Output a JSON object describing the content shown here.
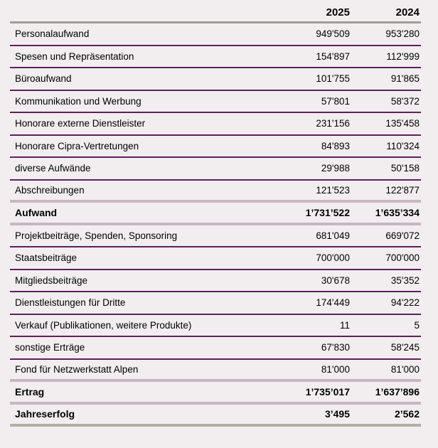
{
  "table": {
    "header": {
      "label": "",
      "year_col_1": "2025",
      "year_col_2": "2024"
    },
    "rows": [
      {
        "label": "Personalaufwand",
        "y2025": "949'509",
        "y2024": "953'280",
        "bold": false
      },
      {
        "label": "Spesen und Repräsentation",
        "y2025": "154'897",
        "y2024": "112'999",
        "bold": false
      },
      {
        "label": "Büroaufwand",
        "y2025": "101'755",
        "y2024": "91'865",
        "bold": false
      },
      {
        "label": "Kommunikation und Werbung",
        "y2025": "57'801",
        "y2024": "58'372",
        "bold": false
      },
      {
        "label": "Honorare externe Dienstleister",
        "y2025": "231'156",
        "y2024": "135'458",
        "bold": false
      },
      {
        "label": "Honorare Cipra-Vertretungen",
        "y2025": "84'893",
        "y2024": "110'324",
        "bold": false
      },
      {
        "label": "diverse Aufwände",
        "y2025": "29'988",
        "y2024": "50'158",
        "bold": false
      },
      {
        "label": "Abschreibungen",
        "y2025": "121'523",
        "y2024": "122'877",
        "bold": false
      },
      {
        "label": "Aufwand",
        "y2025": "1’731’522",
        "y2024": "1’635’334",
        "bold": true
      },
      {
        "label": "Projektbeiträge, Spenden, Sponsoring",
        "y2025": "681'049",
        "y2024": "669'072",
        "bold": false
      },
      {
        "label": "Staatsbeiträge",
        "y2025": "700'000",
        "y2024": "700'000",
        "bold": false
      },
      {
        "label": "Mitgliedsbeiträge",
        "y2025": "30'678",
        "y2024": "35'352",
        "bold": false
      },
      {
        "label": "Dienstleistungen für Dritte",
        "y2025": "174'449",
        "y2024": "94'222",
        "bold": false
      },
      {
        "label": "Verkauf (Publikationen, weitere Produkte)",
        "y2025": "11",
        "y2024": "5",
        "bold": false
      },
      {
        "label": "sonstige Erträge",
        "y2025": "67'830",
        "y2024": "58'245",
        "bold": false
      },
      {
        "label": "Fond für Netzwerkstatt Alpen",
        "y2025": "81'000",
        "y2024": "81'000",
        "bold": false
      },
      {
        "label": "Ertrag",
        "y2025": "1’735’017",
        "y2024": "1’637’896",
        "bold": true
      },
      {
        "label": "Jahreserfolg",
        "y2025": "3’495",
        "y2024": "2’562",
        "bold": true
      }
    ]
  },
  "colors": {
    "background": "#f2eef0",
    "text": "#000000",
    "header_rule": "#9f9d97",
    "row_rule": "#5e2158",
    "section_rule": "#c9b4c4",
    "end_rule": "#b2afa3"
  }
}
